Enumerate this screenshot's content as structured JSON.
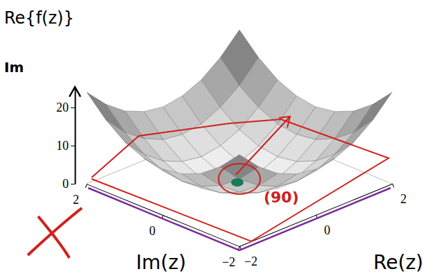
{
  "chart_data": {
    "type": "surface",
    "zlabel": "Re{f(z)}",
    "xlabel": "Re(z)",
    "ylabel": "Im(z)",
    "annotations": [
      {
        "text": "Im"
      },
      {
        "text": "(90)",
        "color": "#d0201c"
      }
    ],
    "x": [
      -2,
      -1.5,
      -1,
      -0.5,
      0,
      0.5,
      1,
      1.5,
      2
    ],
    "y": [
      -2,
      -1.5,
      -1,
      -0.5,
      0,
      0.5,
      1,
      1.5,
      2
    ],
    "z": [
      [
        24,
        18.8,
        15,
        12.8,
        12,
        12.8,
        15,
        18.8,
        24
      ],
      [
        18.8,
        13.5,
        9.8,
        7.5,
        6.8,
        7.5,
        9.8,
        13.5,
        18.8
      ],
      [
        15,
        9.8,
        6,
        3.8,
        3,
        3.8,
        6,
        9.8,
        15
      ],
      [
        12.8,
        7.5,
        3.8,
        1.5,
        0.8,
        1.5,
        3.8,
        7.5,
        12.8
      ],
      [
        12,
        6.8,
        3,
        0.8,
        3,
        0.8,
        3,
        6.8,
        12
      ],
      [
        12.8,
        7.5,
        3.8,
        1.5,
        0.8,
        1.5,
        3.8,
        7.5,
        12.8
      ],
      [
        15,
        9.8,
        6,
        3.8,
        3,
        3.8,
        6,
        9.8,
        15
      ],
      [
        18.8,
        13.5,
        9.8,
        7.5,
        6.8,
        7.5,
        9.8,
        13.5,
        18.8
      ],
      [
        24,
        18.8,
        15,
        12.8,
        12,
        12.8,
        15,
        18.8,
        24
      ]
    ],
    "xlim": [
      -2,
      2
    ],
    "ylim": [
      -2,
      2
    ],
    "zlim": [
      0,
      25
    ],
    "xticks": [
      {
        "value": -2,
        "label": "−2"
      },
      0,
      2
    ],
    "yticks": [
      {
        "value": -2,
        "label": "−2"
      },
      0,
      2
    ],
    "zticks": [
      0,
      10,
      20
    ]
  }
}
